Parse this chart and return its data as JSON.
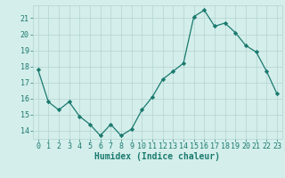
{
  "x": [
    0,
    1,
    2,
    3,
    4,
    5,
    6,
    7,
    8,
    9,
    10,
    11,
    12,
    13,
    14,
    15,
    16,
    17,
    18,
    19,
    20,
    21,
    22,
    23
  ],
  "y": [
    17.8,
    15.8,
    15.3,
    15.8,
    14.9,
    14.4,
    13.7,
    14.4,
    13.7,
    14.1,
    15.3,
    16.1,
    17.2,
    17.7,
    18.2,
    21.1,
    21.5,
    20.5,
    20.7,
    20.1,
    19.3,
    18.9,
    17.7,
    16.3
  ],
  "line_color": "#1a7a6e",
  "marker": "D",
  "markersize": 2.2,
  "linewidth": 0.9,
  "bg_color": "#d4eeeb",
  "grid_color": "#b8d8d4",
  "xlabel": "Humidex (Indice chaleur)",
  "xlim": [
    -0.5,
    23.5
  ],
  "ylim": [
    13.5,
    21.8
  ],
  "yticks": [
    14,
    15,
    16,
    17,
    18,
    19,
    20,
    21
  ],
  "xticks": [
    0,
    1,
    2,
    3,
    4,
    5,
    6,
    7,
    8,
    9,
    10,
    11,
    12,
    13,
    14,
    15,
    16,
    17,
    18,
    19,
    20,
    21,
    22,
    23
  ],
  "xtick_labels": [
    "0",
    "1",
    "2",
    "3",
    "4",
    "5",
    "6",
    "7",
    "8",
    "9",
    "10",
    "11",
    "12",
    "13",
    "14",
    "15",
    "16",
    "17",
    "18",
    "19",
    "20",
    "21",
    "22",
    "23"
  ],
  "tick_color": "#1a7a6e",
  "label_fontsize": 7.0,
  "tick_fontsize": 6.0
}
